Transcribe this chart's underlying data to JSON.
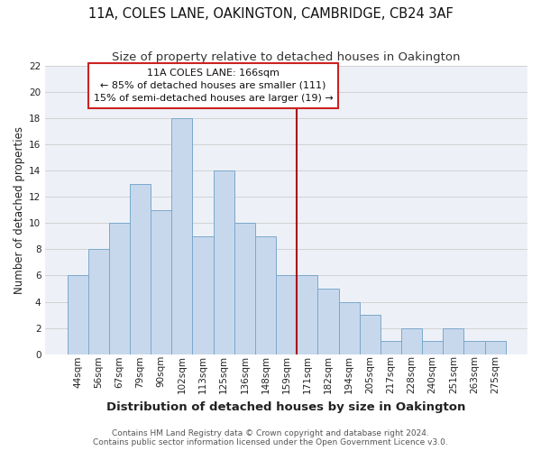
{
  "title": "11A, COLES LANE, OAKINGTON, CAMBRIDGE, CB24 3AF",
  "subtitle": "Size of property relative to detached houses in Oakington",
  "xlabel": "Distribution of detached houses by size in Oakington",
  "ylabel": "Number of detached properties",
  "bar_labels": [
    "44sqm",
    "56sqm",
    "67sqm",
    "79sqm",
    "90sqm",
    "102sqm",
    "113sqm",
    "125sqm",
    "136sqm",
    "148sqm",
    "159sqm",
    "171sqm",
    "182sqm",
    "194sqm",
    "205sqm",
    "217sqm",
    "228sqm",
    "240sqm",
    "251sqm",
    "263sqm",
    "275sqm"
  ],
  "bar_heights": [
    6,
    8,
    10,
    13,
    11,
    18,
    9,
    14,
    10,
    9,
    6,
    6,
    5,
    4,
    3,
    1,
    2,
    1,
    2,
    1,
    1
  ],
  "bar_color": "#c8d8ec",
  "bar_edge_color": "#7aa8cc",
  "grid_color": "#cccccc",
  "bg_color": "#e8eef5",
  "plot_bg_color": "#edf1f7",
  "annotation_line1": "11A COLES LANE: 166sqm",
  "annotation_line2": "← 85% of detached houses are smaller (111)",
  "annotation_line3": "15% of semi-detached houses are larger (19) →",
  "annotation_box_edge_color": "#cc2222",
  "property_line_color": "#aa1111",
  "ylim": [
    0,
    22
  ],
  "yticks": [
    0,
    2,
    4,
    6,
    8,
    10,
    12,
    14,
    16,
    18,
    20,
    22
  ],
  "footer_line1": "Contains HM Land Registry data © Crown copyright and database right 2024.",
  "footer_line2": "Contains public sector information licensed under the Open Government Licence v3.0.",
  "title_fontsize": 10.5,
  "subtitle_fontsize": 9.5,
  "xlabel_fontsize": 9.5,
  "ylabel_fontsize": 8.5,
  "tick_fontsize": 7.5,
  "annot_fontsize": 8,
  "footer_fontsize": 6.5
}
